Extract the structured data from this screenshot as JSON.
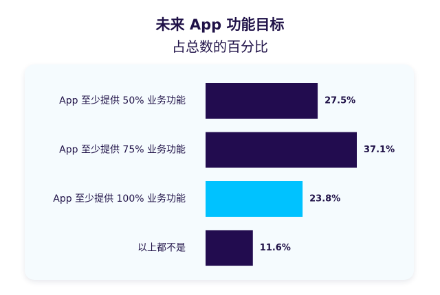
{
  "chart_data": {
    "type": "bar",
    "orientation": "horizontal",
    "title": "未来 App 功能目标",
    "subtitle": "占总数的百分比",
    "categories": [
      "App 至少提供 50% 业务功能",
      "App 至少提供 75% 业务功能",
      "App 至少提供 100% 业务功能",
      "以上都不是"
    ],
    "values": [
      27.5,
      37.1,
      23.8,
      11.6
    ],
    "value_labels": [
      "27.5%",
      "37.1%",
      "23.8%",
      "11.6%"
    ],
    "unit": "%",
    "xlim": [
      0,
      37.1
    ],
    "grid": false,
    "legend": "none",
    "colors": [
      "#220c4f",
      "#220c4f",
      "#00c2ff",
      "#220c4f"
    ]
  }
}
